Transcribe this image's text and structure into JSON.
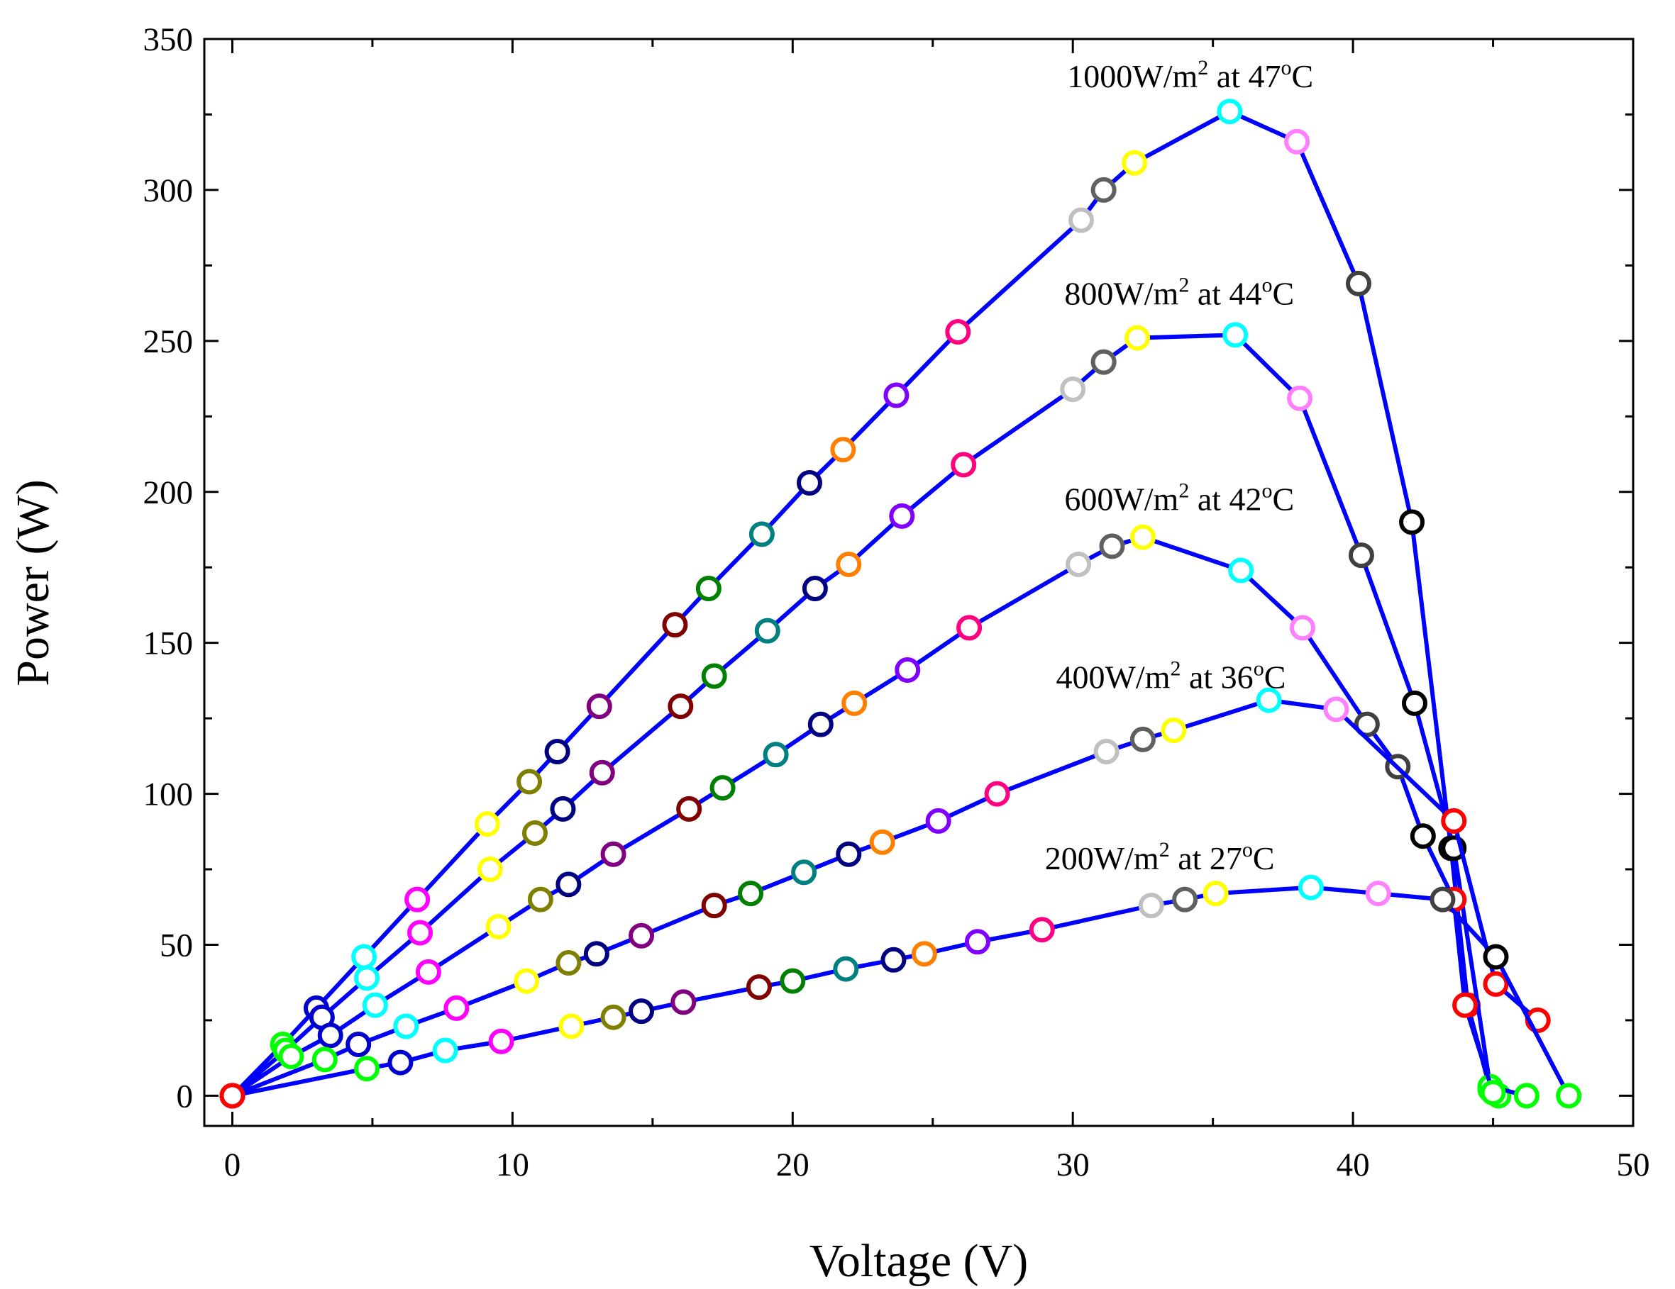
{
  "chart_data": {
    "type": "line",
    "title": "",
    "xlabel": "Voltage (V)",
    "ylabel": "Power (W)",
    "xlim": [
      -1,
      50
    ],
    "ylim": [
      -10,
      350
    ],
    "xticks": [
      0,
      10,
      20,
      30,
      40,
      50
    ],
    "yticks": [
      0,
      50,
      100,
      150,
      200,
      250,
      300,
      350
    ],
    "grid": false,
    "line_color": "#0000ff",
    "series": [
      {
        "name": "1000W/m2 at 47C",
        "label_main": "1000W/m",
        "label_sup1": "2",
        "label_mid": " at 47",
        "label_sup2": "o",
        "label_end": "C",
        "label_at": [
          29.8,
          334
        ],
        "x": [
          0,
          1.8,
          3.0,
          4.7,
          6.6,
          9.1,
          10.6,
          11.6,
          13.1,
          15.8,
          17.0,
          18.9,
          20.6,
          21.8,
          23.7,
          25.9,
          30.3,
          31.1,
          32.2,
          35.6,
          38.0,
          40.2,
          42.1,
          43.5,
          44.1,
          44.9,
          45.2
        ],
        "y": [
          0,
          17,
          29,
          46,
          65,
          90,
          104,
          114,
          129,
          156,
          168,
          186,
          203,
          214,
          232,
          253,
          290,
          300,
          309,
          326,
          316,
          269,
          190,
          82,
          30,
          2,
          0
        ],
        "colors": [
          "#ff0000",
          "#00ff00",
          "#0000cc",
          "#00ffff",
          "#ff00ff",
          "#ffff00",
          "#808000",
          "#000080",
          "#800080",
          "#800000",
          "#008000",
          "#008080",
          "#000080",
          "#ff8000",
          "#8000ff",
          "#ff0080",
          "#c0c0c0",
          "#606060",
          "#ffff00",
          "#00ffff",
          "#ff80ff",
          "#404040",
          "#000000",
          "#000000",
          "#ff0000",
          "#00ff00",
          "#00ff00"
        ]
      },
      {
        "name": "800W/m2 at 44C",
        "label_main": "800W/m",
        "label_sup1": "2",
        "label_mid": " at 44",
        "label_sup2": "o",
        "label_end": "C",
        "label_at": [
          29.7,
          262
        ],
        "x": [
          0,
          1.9,
          3.2,
          4.8,
          6.7,
          9.2,
          10.8,
          11.8,
          13.2,
          16.0,
          17.2,
          19.1,
          20.8,
          22.0,
          23.9,
          26.1,
          30.0,
          31.1,
          32.3,
          35.8,
          38.1,
          40.3,
          42.2,
          43.6,
          44.9,
          46.2
        ],
        "y": [
          0,
          15,
          26,
          39,
          54,
          75,
          87,
          95,
          107,
          129,
          139,
          154,
          168,
          176,
          192,
          209,
          234,
          243,
          251,
          252,
          231,
          179,
          130,
          82,
          3,
          0
        ],
        "colors": [
          "#ff0000",
          "#00ff00",
          "#0000cc",
          "#00ffff",
          "#ff00ff",
          "#ffff00",
          "#808000",
          "#000080",
          "#800080",
          "#800000",
          "#008000",
          "#008080",
          "#000080",
          "#ff8000",
          "#8000ff",
          "#ff0080",
          "#c0c0c0",
          "#606060",
          "#ffff00",
          "#00ffff",
          "#ff80ff",
          "#404040",
          "#000000",
          "#000000",
          "#00ff00",
          "#00ff00"
        ]
      },
      {
        "name": "600W/m2 at 42C",
        "label_main": "600W/m",
        "label_sup1": "2",
        "label_mid": " at 42",
        "label_sup2": "o",
        "label_end": "C",
        "label_at": [
          29.7,
          194
        ],
        "x": [
          0,
          2.1,
          3.5,
          5.1,
          7.0,
          9.5,
          11.0,
          12.0,
          13.6,
          16.3,
          17.5,
          19.4,
          21.0,
          22.2,
          24.1,
          26.3,
          30.2,
          31.4,
          32.5,
          36.0,
          38.2,
          40.5,
          41.6,
          42.5,
          43.6,
          44.0,
          45.0
        ],
        "y": [
          0,
          13,
          20,
          30,
          41,
          56,
          65,
          70,
          80,
          95,
          102,
          113,
          123,
          130,
          141,
          155,
          176,
          182,
          185,
          174,
          155,
          123,
          109,
          86,
          65,
          30,
          1
        ],
        "colors": [
          "#ff0000",
          "#00ff00",
          "#0000cc",
          "#00ffff",
          "#ff00ff",
          "#ffff00",
          "#808000",
          "#000080",
          "#800080",
          "#800000",
          "#008000",
          "#008080",
          "#000080",
          "#ff8000",
          "#8000ff",
          "#ff0080",
          "#c0c0c0",
          "#606060",
          "#ffff00",
          "#00ffff",
          "#ff80ff",
          "#404040",
          "#404040",
          "#000000",
          "#ff0000",
          "#ff0000",
          "#00ff00"
        ]
      },
      {
        "name": "400W/m2 at 36C",
        "label_main": "400W/m",
        "label_sup1": "2",
        "label_mid": " at 36",
        "label_sup2": "o",
        "label_end": "C",
        "label_at": [
          29.4,
          135
        ],
        "x": [
          0,
          3.3,
          4.5,
          6.2,
          8.0,
          10.5,
          12.0,
          13.0,
          14.6,
          17.2,
          18.5,
          20.4,
          22.0,
          23.2,
          25.2,
          27.3,
          31.2,
          32.5,
          33.6,
          37.0,
          39.4,
          43.6,
          45.1,
          46.6
        ],
        "y": [
          0,
          12,
          17,
          23,
          29,
          38,
          44,
          47,
          53,
          63,
          67,
          74,
          80,
          84,
          91,
          100,
          114,
          118,
          121,
          131,
          128,
          91,
          37,
          25
        ],
        "colors": [
          "#ff0000",
          "#00ff00",
          "#0000cc",
          "#00ffff",
          "#ff00ff",
          "#ffff00",
          "#808000",
          "#000080",
          "#800080",
          "#800000",
          "#008000",
          "#008080",
          "#000080",
          "#ff8000",
          "#8000ff",
          "#ff0080",
          "#c0c0c0",
          "#606060",
          "#ffff00",
          "#00ffff",
          "#ff80ff",
          "#ff0000",
          "#ff0000",
          "#ff0000"
        ]
      },
      {
        "name": "200W/m2 at 27C",
        "label_main": "200W/m",
        "label_sup1": "2",
        "label_mid": " at 27",
        "label_sup2": "o",
        "label_end": "C",
        "label_at": [
          29.0,
          75
        ],
        "x": [
          0,
          4.8,
          6.0,
          7.6,
          9.6,
          12.1,
          13.6,
          14.6,
          16.1,
          18.8,
          20.0,
          21.9,
          23.6,
          24.7,
          26.6,
          28.9,
          32.8,
          34.0,
          35.1,
          38.5,
          40.9,
          43.2,
          45.1,
          47.7
        ],
        "y": [
          0,
          9,
          11,
          15,
          18,
          23,
          26,
          28,
          31,
          36,
          38,
          42,
          45,
          47,
          51,
          55,
          63,
          65,
          67,
          69,
          67,
          65,
          46,
          0
        ],
        "colors": [
          "#ff0000",
          "#00ff00",
          "#0000cc",
          "#00ffff",
          "#ff00ff",
          "#ffff00",
          "#808000",
          "#000080",
          "#800080",
          "#800000",
          "#008000",
          "#008080",
          "#000080",
          "#ff8000",
          "#8000ff",
          "#ff0080",
          "#c0c0c0",
          "#606060",
          "#ffff00",
          "#00ffff",
          "#ff80ff",
          "#404040",
          "#000000",
          "#00ff00"
        ]
      }
    ]
  }
}
